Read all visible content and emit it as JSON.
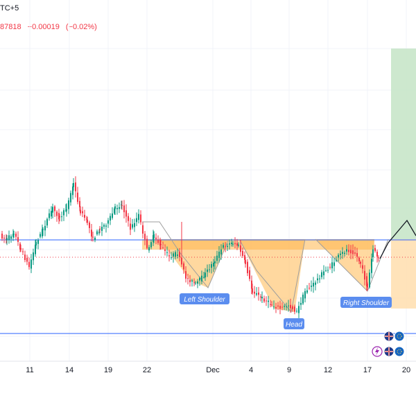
{
  "header": {
    "title_fragment": "TC+5",
    "price_fragment": "87818",
    "change": "−0.00019",
    "change_pct": "(−0.02%)"
  },
  "x_axis_labels": [
    "11",
    "14",
    "19",
    "22",
    "Dec",
    "4",
    "9",
    "12",
    "17",
    "20"
  ],
  "pattern": {
    "type": "inverse head and shoulders",
    "left_shoulder_label": "Left Shoulder",
    "head_label": "Head",
    "right_shoulder_label": "Right Shoulder"
  },
  "chart_data": {
    "type": "candlestick",
    "x_labels": [
      "11",
      "14",
      "19",
      "22",
      "Dec",
      "4",
      "9",
      "12",
      "17",
      "20"
    ],
    "annotations": [
      "Left Shoulder",
      "Head",
      "Right Shoulder"
    ],
    "grid": true,
    "colors": {
      "up": "#089981",
      "down": "#f23645",
      "neckline": "#2962ff",
      "pattern_fill": "#ffb74d",
      "target_zone": "#a5d6a7"
    }
  },
  "icons": [
    "flag-gb-icon",
    "flag-eu-icon",
    "lightning-icon"
  ]
}
